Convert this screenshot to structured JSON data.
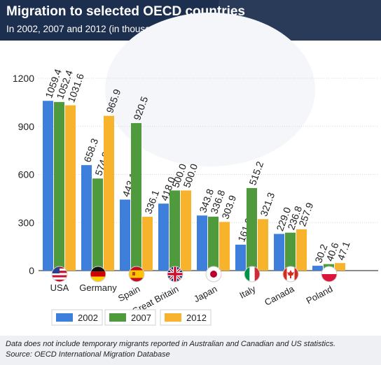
{
  "header": {
    "title": "Migration to selected OECD countries",
    "subtitle": "In  2002, 2007 and 2012 (in thousands)"
  },
  "footer": {
    "note": "Data does not include temporary migrants reported in Australian and Canadian and US statistics.",
    "source": "Source: OECD International Migration Database"
  },
  "colors": {
    "2002": "#3e7fdc",
    "2007": "#4f9a3c",
    "2012": "#f7b32b"
  },
  "chart_data": {
    "type": "bar",
    "categories": [
      "USA",
      "Germany",
      "Spain",
      "Great Britain",
      "Japan",
      "Italy",
      "Canada",
      "Poland"
    ],
    "flags": [
      "usa-flag-icon",
      "germany-flag-icon",
      "spain-flag-icon",
      "great-britain-flag-icon",
      "japan-flag-icon",
      "italy-flag-icon",
      "canada-flag-icon",
      "poland-flag-icon"
    ],
    "series": [
      {
        "name": "2002",
        "values": [
          1059.4,
          658.3,
          443.1,
          418.0,
          343.8,
          161.9,
          229.0,
          30.2
        ]
      },
      {
        "name": "2007",
        "values": [
          1052.4,
          574.8,
          920.5,
          500.0,
          336.8,
          515.2,
          236.8,
          40.6
        ]
      },
      {
        "name": "2012",
        "values": [
          1031.6,
          965.9,
          336.1,
          500.0,
          303.9,
          321.3,
          257.9,
          47.1
        ]
      }
    ],
    "data_labels": [
      [
        "1059.4",
        "658.3",
        "443.1",
        "418.0",
        "343.8",
        "161.9",
        "229.0",
        "30.2"
      ],
      [
        "1052.4",
        "574.8",
        "920.5",
        "500.0",
        "336.8",
        "515.2",
        "236.8",
        "40.6"
      ],
      [
        "1031.6",
        "965.9",
        "336.1",
        "500.0",
        "303.9",
        "321.3",
        "257.9",
        "47.1"
      ]
    ],
    "yticks": [
      "0",
      "300",
      "600",
      "900",
      "1200"
    ],
    "ylim": [
      0,
      1200
    ],
    "grid": true,
    "legend": "bottom"
  }
}
